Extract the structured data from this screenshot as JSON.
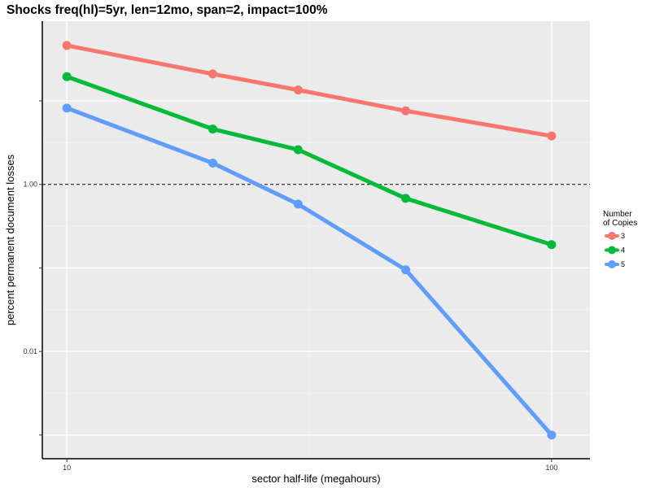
{
  "chart_data": {
    "type": "line",
    "title": "Shocks freq(hl)=5yr, len=12mo, span=2, impact=100%",
    "xlabel": "sector half-life (megahours)",
    "ylabel": "percent permanent document losses",
    "x_scale": "log10",
    "y_scale": "log10",
    "xlim": [
      8.9,
      120
    ],
    "ylim": [
      0.00052,
      90
    ],
    "x_ticks": [
      {
        "value": 10,
        "label": "10"
      },
      {
        "value": 100,
        "label": "100"
      }
    ],
    "y_ticks": [
      {
        "value": 0.001,
        "label": ""
      },
      {
        "value": 0.01,
        "label": "0.01"
      },
      {
        "value": 0.1,
        "label": ""
      },
      {
        "value": 1,
        "label": "1.00"
      },
      {
        "value": 10,
        "label": ""
      }
    ],
    "reference_line": {
      "y": 1,
      "style": "dashed",
      "color": "#000000"
    },
    "grid": true,
    "legend": {
      "title_line1": "Number",
      "title_line2": "of Copies",
      "position": "right"
    },
    "x": [
      10,
      20,
      30,
      50,
      100
    ],
    "series": [
      {
        "name": "3",
        "color": "#F8766D",
        "values": [
          46,
          21,
          13.5,
          7.6,
          3.8
        ]
      },
      {
        "name": "4",
        "color": "#00BA38",
        "values": [
          19.5,
          4.6,
          2.6,
          0.68,
          0.19
        ]
      },
      {
        "name": "5",
        "color": "#619CFF",
        "values": [
          8.2,
          1.8,
          0.58,
          0.095,
          0.001
        ]
      }
    ]
  }
}
